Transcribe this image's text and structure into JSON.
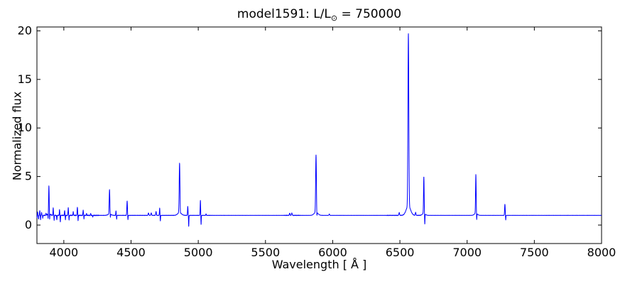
{
  "figure": {
    "title": {
      "prefix": "model1591: L/L",
      "sub": "⊙",
      "suffix": " = 750000"
    },
    "xlabel": "Wavelength [ Å ]",
    "ylabel": "Normalized flux",
    "background_color": "#ffffff",
    "axis_color": "#000000"
  },
  "chart_data": {
    "type": "line",
    "title": "model1591: L/L⊙ = 750000",
    "xlabel": "Wavelength [ Å ]",
    "ylabel": "Normalized flux",
    "xlim": [
      3800,
      8000
    ],
    "ylim": [
      -1.9,
      20.4
    ],
    "xticks": [
      4000,
      4500,
      5000,
      5500,
      6000,
      6500,
      7000,
      7500,
      8000
    ],
    "yticks": [
      0,
      5,
      10,
      15,
      20
    ],
    "grid": false,
    "legend_position": "none",
    "line_color": "#0000ff",
    "continuum_flux": 1.0,
    "description": "Stellar spectrum: flat continuum at flux 1 with narrow emission lines (H Balmer + He I) and narrow absorption dips; entries are [wavelength_A, height_above_continuum, sigma_A] for emission and [wavelength_A, depth_below_continuum, sigma_A] for absorption. Peak total flux = 1 + height.",
    "emission_lines": [
      [
        3805,
        0.35,
        1.5
      ],
      [
        3821,
        0.5,
        1.5
      ],
      [
        3835,
        0.3,
        1.5
      ],
      [
        3868,
        0.2,
        1.5
      ],
      [
        3889,
        2.85,
        2.2
      ],
      [
        3921,
        0.8,
        1.6
      ],
      [
        3968,
        0.6,
        1.6
      ],
      [
        4006,
        0.5,
        1.6
      ],
      [
        4033,
        0.8,
        1.8
      ],
      [
        4070,
        0.4,
        1.6
      ],
      [
        4101,
        0.85,
        2.0
      ],
      [
        4144,
        0.5,
        2.0
      ],
      [
        4169,
        0.2,
        1.6
      ],
      [
        4200,
        0.18,
        1.6
      ],
      [
        4340,
        2.5,
        2.4
      ],
      [
        4388,
        0.45,
        1.8
      ],
      [
        4471,
        1.5,
        2.2
      ],
      [
        4630,
        0.25,
        2.5
      ],
      [
        4650,
        0.25,
        2.5
      ],
      [
        4686,
        0.4,
        2.2
      ],
      [
        4713,
        0.75,
        1.8
      ],
      [
        4861,
        5.1,
        2.8
      ],
      [
        4922,
        0.95,
        1.8
      ],
      [
        5016,
        1.55,
        1.8
      ],
      [
        5058,
        0.15,
        1.8
      ],
      [
        5680,
        0.22,
        2.5
      ],
      [
        5696,
        0.25,
        2.5
      ],
      [
        5876,
        5.9,
        2.8
      ],
      [
        5975,
        0.15,
        2.2
      ],
      [
        6495,
        0.3,
        2.5
      ],
      [
        6563,
        17.8,
        3.2
      ],
      [
        6617,
        0.3,
        2.5
      ],
      [
        6678,
        3.8,
        2.2
      ],
      [
        7065,
        4.0,
        2.2
      ],
      [
        7281,
        1.15,
        2.2
      ]
    ],
    "absorption_lines": [
      [
        3800,
        0.3,
        1.2
      ],
      [
        3812,
        0.4,
        1.2
      ],
      [
        3827,
        0.45,
        1.2
      ],
      [
        3843,
        0.3,
        1.2
      ],
      [
        3883,
        0.5,
        1.2
      ],
      [
        3894,
        0.65,
        1.4
      ],
      [
        3928,
        0.5,
        1.3
      ],
      [
        3948,
        0.5,
        1.3
      ],
      [
        3974,
        0.7,
        1.4
      ],
      [
        4012,
        0.45,
        1.3
      ],
      [
        4039,
        0.5,
        1.3
      ],
      [
        4106,
        0.6,
        1.4
      ],
      [
        4150,
        0.35,
        1.3
      ],
      [
        4215,
        0.2,
        1.3
      ],
      [
        4346,
        0.4,
        1.4
      ],
      [
        4393,
        0.4,
        1.3
      ],
      [
        4477,
        0.5,
        1.4
      ],
      [
        4718,
        0.6,
        1.4
      ],
      [
        4867,
        0.3,
        1.4
      ],
      [
        4929,
        1.15,
        1.4
      ],
      [
        5021,
        1.0,
        1.4
      ],
      [
        5882,
        0.7,
        1.4
      ],
      [
        6685,
        1.1,
        1.5
      ],
      [
        7071,
        0.7,
        1.4
      ],
      [
        7287,
        0.5,
        1.4
      ]
    ],
    "noise": {
      "amp_below_4260": 0.05,
      "amp_4260_to_5100": 0.022,
      "amp_above_5100": 0.012,
      "extra_amp_5640_5760": 0.02,
      "extra_amp_6400_6660": 0.018
    }
  }
}
